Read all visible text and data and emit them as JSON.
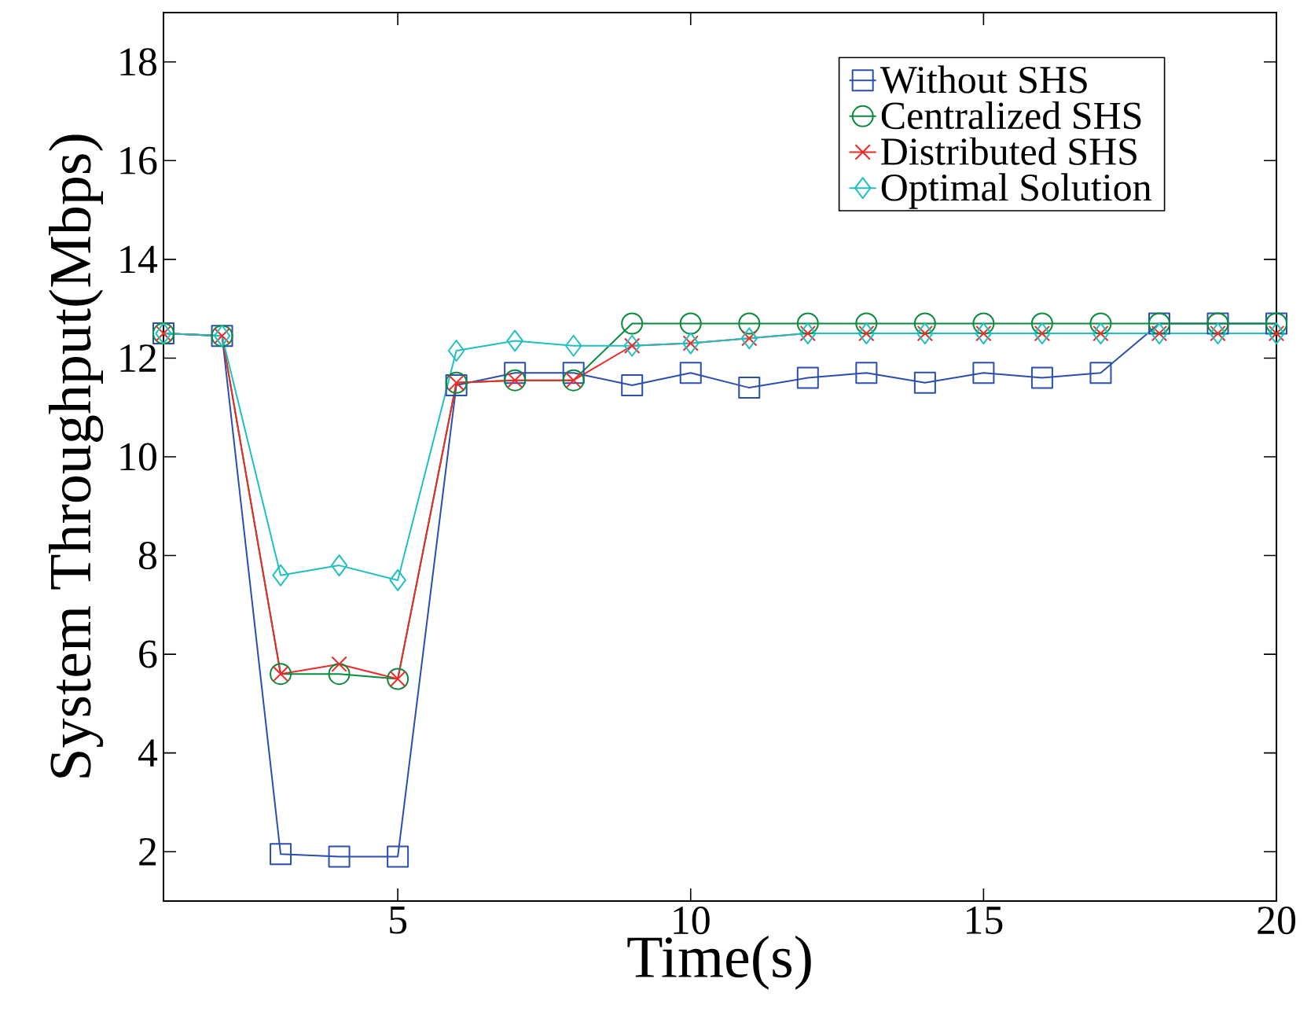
{
  "chart_data": {
    "type": "line",
    "xlabel": "Time(s)",
    "ylabel": "System Throughput(Mbps)",
    "x": [
      1,
      2,
      3,
      4,
      5,
      6,
      7,
      8,
      9,
      10,
      11,
      12,
      13,
      14,
      15,
      16,
      17,
      18,
      19,
      20
    ],
    "series": [
      {
        "name": "Without SHS",
        "color": "#2b4fb0",
        "marker": "square",
        "values": [
          12.5,
          12.45,
          1.95,
          1.9,
          1.9,
          11.45,
          11.7,
          11.7,
          11.45,
          11.7,
          11.4,
          11.6,
          11.7,
          11.5,
          11.7,
          11.6,
          11.7,
          12.7,
          12.7,
          12.7
        ]
      },
      {
        "name": "Centralized SHS",
        "color": "#0a8a3c",
        "marker": "circle",
        "values": [
          12.5,
          12.45,
          5.6,
          5.6,
          5.5,
          11.5,
          11.55,
          11.55,
          12.7,
          12.7,
          12.7,
          12.7,
          12.7,
          12.7,
          12.7,
          12.7,
          12.7,
          12.7,
          12.7,
          12.7
        ]
      },
      {
        "name": "Distributed SHS",
        "color": "#f02828",
        "marker": "cross",
        "values": [
          12.5,
          12.45,
          5.6,
          5.8,
          5.5,
          11.5,
          11.55,
          11.55,
          12.25,
          12.3,
          12.4,
          12.5,
          12.5,
          12.5,
          12.5,
          12.5,
          12.5,
          12.5,
          12.5,
          12.5
        ]
      },
      {
        "name": "Optimal Solution",
        "color": "#20c0c0",
        "marker": "diamond",
        "values": [
          12.5,
          12.45,
          7.6,
          7.8,
          7.5,
          12.15,
          12.35,
          12.25,
          12.25,
          12.3,
          12.4,
          12.5,
          12.5,
          12.5,
          12.5,
          12.5,
          12.5,
          12.5,
          12.5,
          12.5
        ]
      }
    ],
    "xlim": [
      1,
      20
    ],
    "xticks": [
      5,
      10,
      15,
      20
    ],
    "ylim": [
      1,
      19
    ],
    "yticks": [
      2,
      4,
      6,
      8,
      10,
      12,
      14,
      16,
      18
    ],
    "grid": false,
    "legend": "top right",
    "line_style": "solid"
  }
}
